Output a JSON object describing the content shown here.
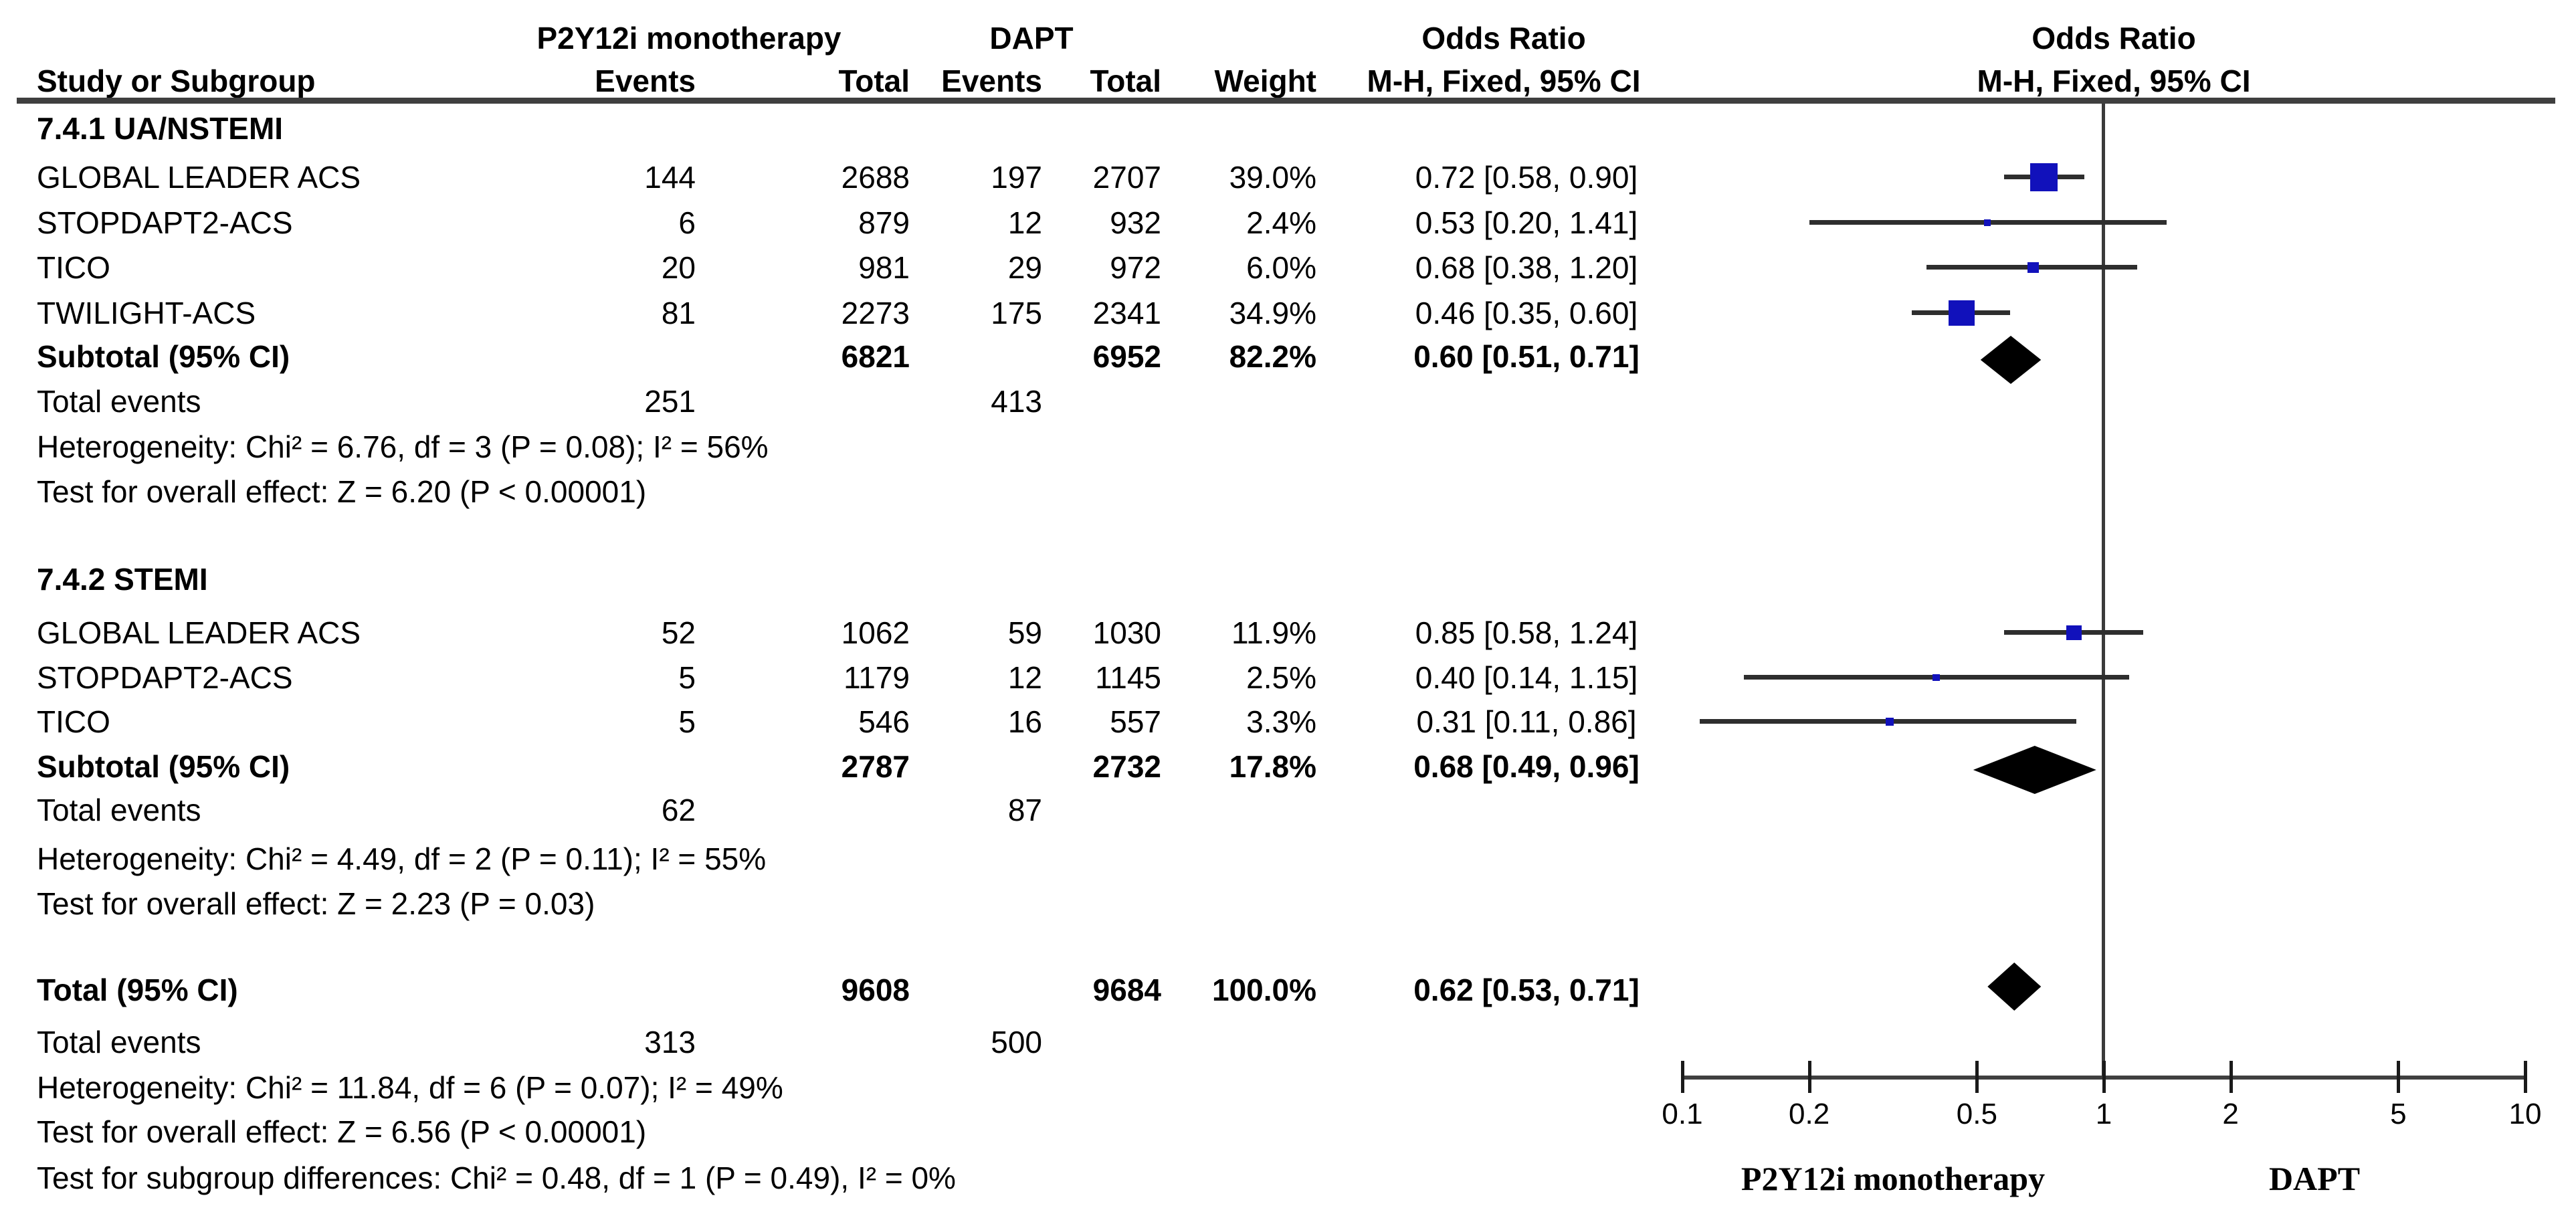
{
  "columns": {
    "study": "Study or Subgroup",
    "group1": "P2Y12i monotherapy",
    "group2": "DAPT",
    "events": "Events",
    "total": "Total",
    "weight": "Weight",
    "odds_ratio": "Odds Ratio",
    "method": "M-H, Fixed, 95% CI"
  },
  "chart_data": {
    "type": "forest",
    "scale": "log",
    "effect_measure": "Odds Ratio (M-H, Fixed, 95% CI)",
    "axis_ticks": [
      0.1,
      0.2,
      0.5,
      1,
      2,
      5,
      10
    ],
    "axis_range": [
      0.1,
      10
    ],
    "axis_left_label": "P2Y12i monotherapy",
    "axis_right_label": "DAPT",
    "sections": [
      {
        "heading": "7.4.1 UA/NSTEMI",
        "studies": [
          {
            "study": "GLOBAL LEADER ACS",
            "events1": "144",
            "total1": "2688",
            "events2": "197",
            "total2": "2707",
            "weight": "39.0%",
            "weight_pct": 39.0,
            "or_text": "0.72 [0.58, 0.90]",
            "or": 0.72,
            "ci_low": 0.58,
            "ci_high": 0.9
          },
          {
            "study": "STOPDAPT2-ACS",
            "events1": "6",
            "total1": "879",
            "events2": "12",
            "total2": "932",
            "weight": "2.4%",
            "weight_pct": 2.4,
            "or_text": "0.53 [0.20, 1.41]",
            "or": 0.53,
            "ci_low": 0.2,
            "ci_high": 1.41
          },
          {
            "study": "TICO",
            "events1": "20",
            "total1": "981",
            "events2": "29",
            "total2": "972",
            "weight": "6.0%",
            "weight_pct": 6.0,
            "or_text": "0.68 [0.38, 1.20]",
            "or": 0.68,
            "ci_low": 0.38,
            "ci_high": 1.2
          },
          {
            "study": "TWILIGHT-ACS",
            "events1": "81",
            "total1": "2273",
            "events2": "175",
            "total2": "2341",
            "weight": "34.9%",
            "weight_pct": 34.9,
            "or_text": "0.46 [0.35, 0.60]",
            "or": 0.46,
            "ci_low": 0.35,
            "ci_high": 0.6
          }
        ],
        "subtotal": {
          "label": "Subtotal (95% CI)",
          "total1": "6821",
          "total2": "6952",
          "weight": "82.2%",
          "or_text": "0.60 [0.51, 0.71]",
          "or": 0.6,
          "ci_low": 0.51,
          "ci_high": 0.71
        },
        "total_events": {
          "label": "Total events",
          "events1": "251",
          "events2": "413"
        },
        "heterogeneity": "Heterogeneity: Chi² = 6.76, df = 3 (P = 0.08); I² = 56%",
        "overall_effect": "Test for overall effect: Z = 6.20 (P < 0.00001)"
      },
      {
        "heading": "7.4.2 STEMI",
        "studies": [
          {
            "study": "GLOBAL LEADER ACS",
            "events1": "52",
            "total1": "1062",
            "events2": "59",
            "total2": "1030",
            "weight": "11.9%",
            "weight_pct": 11.9,
            "or_text": "0.85 [0.58, 1.24]",
            "or": 0.85,
            "ci_low": 0.58,
            "ci_high": 1.24
          },
          {
            "study": "STOPDAPT2-ACS",
            "events1": "5",
            "total1": "1179",
            "events2": "12",
            "total2": "1145",
            "weight": "2.5%",
            "weight_pct": 2.5,
            "or_text": "0.40 [0.14, 1.15]",
            "or": 0.4,
            "ci_low": 0.14,
            "ci_high": 1.15
          },
          {
            "study": "TICO",
            "events1": "5",
            "total1": "546",
            "events2": "16",
            "total2": "557",
            "weight": "3.3%",
            "weight_pct": 3.3,
            "or_text": "0.31 [0.11, 0.86]",
            "or": 0.31,
            "ci_low": 0.11,
            "ci_high": 0.86
          }
        ],
        "subtotal": {
          "label": "Subtotal (95% CI)",
          "total1": "2787",
          "total2": "2732",
          "weight": "17.8%",
          "or_text": "0.68 [0.49, 0.96]",
          "or": 0.68,
          "ci_low": 0.49,
          "ci_high": 0.96
        },
        "total_events": {
          "label": "Total events",
          "events1": "62",
          "events2": "87"
        },
        "heterogeneity": "Heterogeneity: Chi² = 4.49, df = 2 (P = 0.11); I² = 55%",
        "overall_effect": "Test for overall effect: Z = 2.23 (P = 0.03)"
      }
    ],
    "total": {
      "label": "Total (95% CI)",
      "total1": "9608",
      "total2": "9684",
      "weight": "100.0%",
      "or_text": "0.62 [0.53, 0.71]",
      "or": 0.62,
      "ci_low": 0.53,
      "ci_high": 0.71,
      "total_events": {
        "label": "Total events",
        "events1": "313",
        "events2": "500"
      },
      "heterogeneity": "Heterogeneity: Chi² = 11.84, df = 6 (P = 0.07); I² = 49%",
      "overall_effect": "Test for overall effect: Z = 6.56 (P < 0.00001)",
      "subgroup_differences": "Test for subgroup differences: Chi² = 0.48, df = 1 (P = 0.49), I² = 0%"
    }
  },
  "colors": {
    "marker_blue": "#1111bb",
    "diamond_black": "#000000",
    "line_gray": "#3f3f3f"
  }
}
